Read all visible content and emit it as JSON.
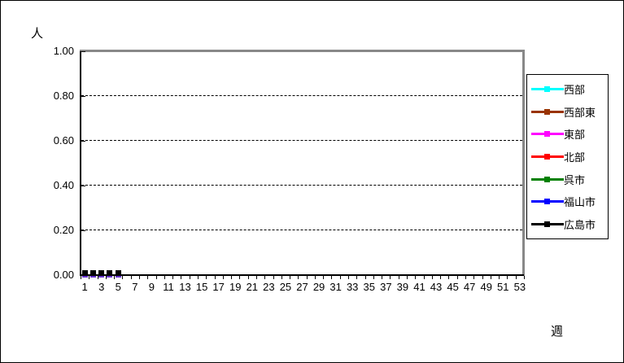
{
  "chart": {
    "y_axis_title": "人",
    "x_axis_title": "週",
    "colors": {
      "plot_border_gray": "#888888",
      "axis_black": "#000000",
      "gridline": "#000000",
      "marker_top": "#000000",
      "marker_fringe_violet": "#6633CC",
      "background": "#FFFFFF"
    }
  },
  "chart_data": {
    "type": "line",
    "title": "",
    "xlabel": "週",
    "ylabel": "人",
    "ylim": [
      0.0,
      1.0
    ],
    "y_tick_values": [
      1.0,
      0.8,
      0.6,
      0.4,
      0.2,
      0.0
    ],
    "y_tick_labels": [
      "1.00",
      "0.80",
      "0.60",
      "0.40",
      "0.20",
      "0.00"
    ],
    "x_axis_type": "category",
    "x_categories_count": 53,
    "x_labeled_ticks": [
      1,
      3,
      5,
      7,
      9,
      11,
      13,
      15,
      17,
      19,
      21,
      23,
      25,
      27,
      29,
      31,
      33,
      35,
      37,
      39,
      41,
      43,
      45,
      47,
      49,
      51,
      53
    ],
    "grid": "horizontal-dashed",
    "legend_position": "right",
    "series": [
      {
        "name": "西部",
        "color": "#00FFFF",
        "x": [
          1,
          2,
          3,
          4,
          5
        ],
        "y": [
          0,
          0,
          0,
          0,
          0
        ]
      },
      {
        "name": "西部東",
        "color": "#993300",
        "x": [
          1,
          2,
          3,
          4,
          5
        ],
        "y": [
          0,
          0,
          0,
          0,
          0
        ]
      },
      {
        "name": "東部",
        "color": "#FF00FF",
        "x": [
          1,
          2,
          3,
          4,
          5
        ],
        "y": [
          0,
          0,
          0,
          0,
          0
        ]
      },
      {
        "name": "北部",
        "color": "#FF0000",
        "x": [
          1,
          2,
          3,
          4,
          5
        ],
        "y": [
          0,
          0,
          0,
          0,
          0
        ]
      },
      {
        "name": "呉市",
        "color": "#008000",
        "x": [
          1,
          2,
          3,
          4,
          5
        ],
        "y": [
          0,
          0,
          0,
          0,
          0
        ]
      },
      {
        "name": "福山市",
        "color": "#0000FF",
        "x": [
          1,
          2,
          3,
          4,
          5
        ],
        "y": [
          0,
          0,
          0,
          0,
          0
        ]
      },
      {
        "name": "広島市",
        "color": "#000000",
        "x": [
          1,
          2,
          3,
          4,
          5
        ],
        "y": [
          0,
          0,
          0,
          0,
          0
        ]
      }
    ]
  }
}
